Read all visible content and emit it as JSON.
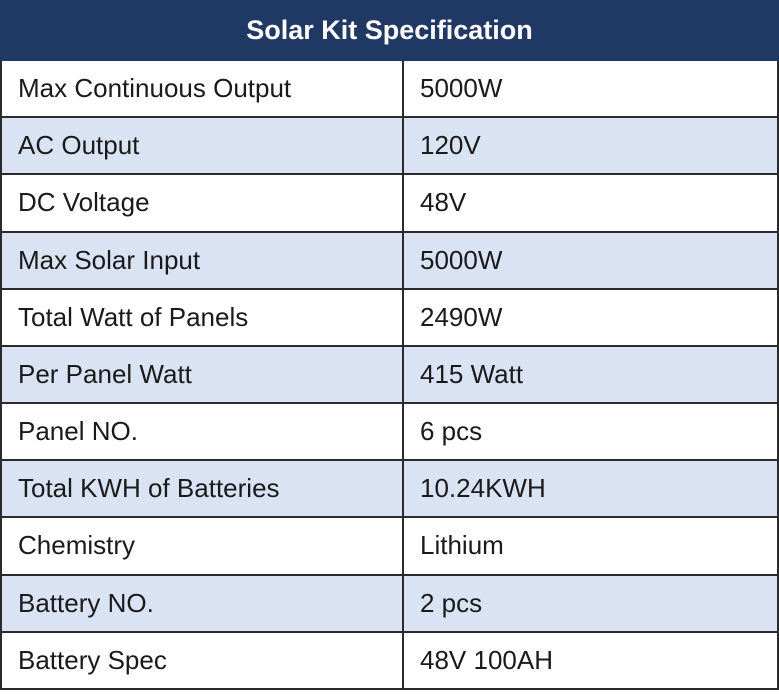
{
  "table": {
    "title": "Solar Kit Specification",
    "rows": [
      {
        "label": "Max Continuous Output",
        "value": "5000W"
      },
      {
        "label": "AC Output",
        "value": "120V"
      },
      {
        "label": "DC Voltage",
        "value": "48V"
      },
      {
        "label": "Max Solar Input",
        "value": "5000W"
      },
      {
        "label": "Total Watt of Panels",
        "value": "2490W"
      },
      {
        "label": "Per Panel Watt",
        "value": "415 Watt"
      },
      {
        "label": "Panel NO.",
        "value": "6 pcs"
      },
      {
        "label": "Total KWH of Batteries",
        "value": "10.24KWH"
      },
      {
        "label": "Chemistry",
        "value": "Lithium"
      },
      {
        "label": "Battery NO.",
        "value": "2 pcs"
      },
      {
        "label": "Battery Spec",
        "value": "48V 100AH"
      }
    ]
  },
  "colors": {
    "header_background": "#1f3864",
    "header_text": "#ffffff",
    "alternate_row": "#dae3f3",
    "border": "#2b2b2b"
  }
}
